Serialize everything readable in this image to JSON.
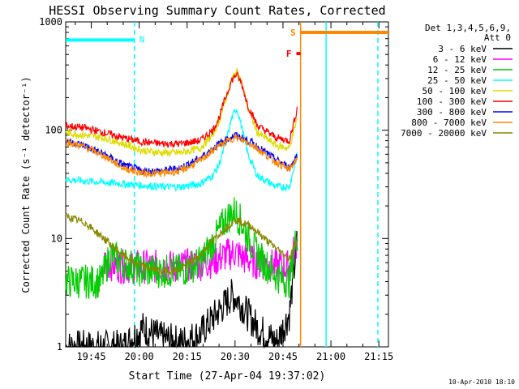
{
  "chart_data": {
    "type": "line",
    "title": "HESSI Observing Summary Count Rates, Corrected",
    "xlabel": "Start Time (27-Apr-04 19:37:02)",
    "ylabel": "Corrected Count Rate (s⁻¹ detector⁻¹)",
    "y_scale": "log",
    "ylim": [
      1,
      1000
    ],
    "x_unit": "minutes after 19:37:02 on 27-Apr-2004",
    "xlim": [
      0,
      101
    ],
    "x_ticks": [
      {
        "value": 8,
        "label": "19:45"
      },
      {
        "value": 23,
        "label": "20:00"
      },
      {
        "value": 38,
        "label": "20:15"
      },
      {
        "value": 53,
        "label": "20:30"
      },
      {
        "value": 68,
        "label": "20:45"
      },
      {
        "value": 83,
        "label": "21:00"
      },
      {
        "value": 98,
        "label": "21:15"
      }
    ],
    "y_ticks": [
      {
        "value": 1,
        "label": "1"
      },
      {
        "value": 10,
        "label": "10"
      },
      {
        "value": 100,
        "label": "100"
      },
      {
        "value": 1000,
        "label": "1000"
      }
    ],
    "legend": {
      "position": "right",
      "header": [
        "Det 1,3,4,5,6,9,",
        "Att 0"
      ]
    },
    "timestamp": "10-Apr-2010 18:10",
    "series": [
      {
        "name": "3 - 6 keV",
        "color": "#000000",
        "x": [
          0,
          6,
          12,
          18,
          24,
          30,
          36,
          42,
          47,
          50,
          52,
          54,
          56,
          60,
          66,
          70,
          72.5
        ],
        "y": [
          1,
          1,
          1,
          1,
          1.5,
          1.2,
          1.1,
          1.3,
          2,
          2.5,
          3,
          2.7,
          2.2,
          1.5,
          1.1,
          2,
          10
        ]
      },
      {
        "name": "6 - 12 keV",
        "color": "#ff00ff",
        "x": [
          12,
          18,
          24,
          30,
          36,
          42,
          46,
          50,
          53,
          56,
          60,
          66,
          70,
          72.5
        ],
        "y": [
          6,
          5.5,
          5.5,
          5.5,
          5.5,
          5.8,
          6.2,
          7,
          7.5,
          6.5,
          6,
          5.5,
          5.5,
          10
        ]
      },
      {
        "name": "12 - 25 keV",
        "color": "#00cc00",
        "x": [
          0,
          6,
          11,
          14,
          18,
          24,
          30,
          36,
          42,
          46,
          50,
          53,
          55,
          58,
          62,
          66,
          70,
          72.5
        ],
        "y": [
          4,
          4,
          4,
          7,
          6,
          5,
          5,
          5,
          6,
          9,
          15,
          18,
          14,
          9,
          6,
          4.5,
          4,
          12
        ]
      },
      {
        "name": "25 - 50 keV",
        "color": "#00ffff",
        "x": [
          0,
          6,
          12,
          18,
          24,
          30,
          36,
          42,
          46,
          48,
          50,
          52,
          53.5,
          55,
          57,
          60,
          66,
          70,
          72.5
        ],
        "y": [
          35,
          34,
          33,
          32,
          31,
          30,
          30,
          32,
          38,
          48,
          75,
          130,
          160,
          110,
          60,
          38,
          30,
          30,
          60
        ]
      },
      {
        "name": "50 - 100 keV",
        "color": "#dddd00",
        "x": [
          0,
          6,
          12,
          18,
          24,
          30,
          36,
          42,
          46,
          48,
          50,
          52,
          53.5,
          55,
          57,
          60,
          66,
          70,
          72.5
        ],
        "y": [
          95,
          90,
          85,
          75,
          65,
          62,
          62,
          68,
          90,
          120,
          190,
          300,
          350,
          280,
          160,
          95,
          72,
          68,
          130
        ]
      },
      {
        "name": "100 - 300 keV",
        "color": "#ff0000",
        "x": [
          0,
          6,
          12,
          18,
          24,
          30,
          36,
          42,
          46,
          48,
          50,
          52,
          53.5,
          55,
          57,
          60,
          66,
          70,
          72.5
        ],
        "y": [
          110,
          105,
          95,
          85,
          78,
          75,
          75,
          80,
          100,
          130,
          200,
          290,
          330,
          270,
          170,
          110,
          85,
          80,
          160
        ]
      },
      {
        "name": "300 - 800 keV",
        "color": "#0000ff",
        "x": [
          0,
          6,
          12,
          18,
          24,
          30,
          36,
          42,
          48,
          53,
          58,
          64,
          70,
          72.5
        ],
        "y": [
          80,
          72,
          60,
          48,
          42,
          42,
          45,
          55,
          75,
          90,
          78,
          58,
          45,
          60
        ]
      },
      {
        "name": "800 - 7000 keV",
        "color": "#ff8800",
        "x": [
          0,
          6,
          12,
          18,
          24,
          30,
          36,
          42,
          48,
          53,
          58,
          64,
          70,
          72.5
        ],
        "y": [
          78,
          70,
          58,
          45,
          40,
          40,
          42,
          52,
          72,
          86,
          75,
          55,
          43,
          56
        ]
      },
      {
        "name": "7000 - 20000 keV",
        "color": "#888800",
        "x": [
          0,
          6,
          12,
          18,
          24,
          30,
          36,
          42,
          48,
          53,
          58,
          64,
          70,
          72.5
        ],
        "y": [
          16,
          14,
          10,
          7,
          5.5,
          5,
          5.2,
          7,
          11,
          15,
          13,
          9,
          6.5,
          10
        ]
      }
    ],
    "periods": [
      {
        "flag": "N",
        "color": "#00ffff",
        "type": "night",
        "x_start": 0,
        "x_end": 21.5,
        "level": 680
      },
      {
        "flag": "S",
        "color": "#ff8800",
        "type": "saa",
        "x_start": 73.5,
        "x_end": 101,
        "level": 800
      },
      {
        "flag": "F",
        "color": "#ff0000",
        "type": "flare",
        "x_start": 72.2,
        "x_end": 73.5,
        "level": 510
      }
    ],
    "vertical_lines": [
      {
        "x": 21.5,
        "color": "#00ffff",
        "style": "dashed"
      },
      {
        "x": 73.5,
        "color": "#ff8800",
        "style": "solid"
      },
      {
        "x": 81.5,
        "color": "#00ffff",
        "style": "solid"
      },
      {
        "x": 97.7,
        "color": "#00ffff",
        "style": "dashed"
      }
    ]
  }
}
